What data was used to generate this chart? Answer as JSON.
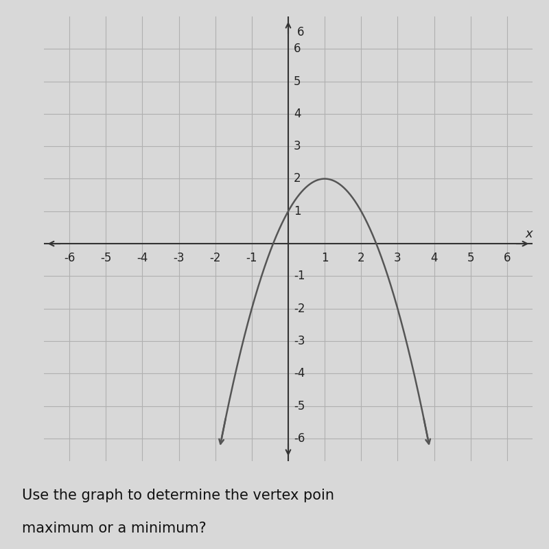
{
  "xlabel": "x",
  "xlim": [
    -6.7,
    6.7
  ],
  "ylim": [
    -6.7,
    7.0
  ],
  "grid_color": "#b0b0b0",
  "axis_color": "#333333",
  "curve_color": "#555555",
  "plot_bg": "#d8d8d8",
  "fig_bg": "#d8d8d8",
  "vertex_x": 1,
  "vertex_y": 2,
  "a": -1,
  "curve_lw": 1.8,
  "font_size_ticks": 12,
  "bottom_text1": "Use the graph to determine the vertex poin",
  "bottom_text2": "maximum or a minimum?"
}
